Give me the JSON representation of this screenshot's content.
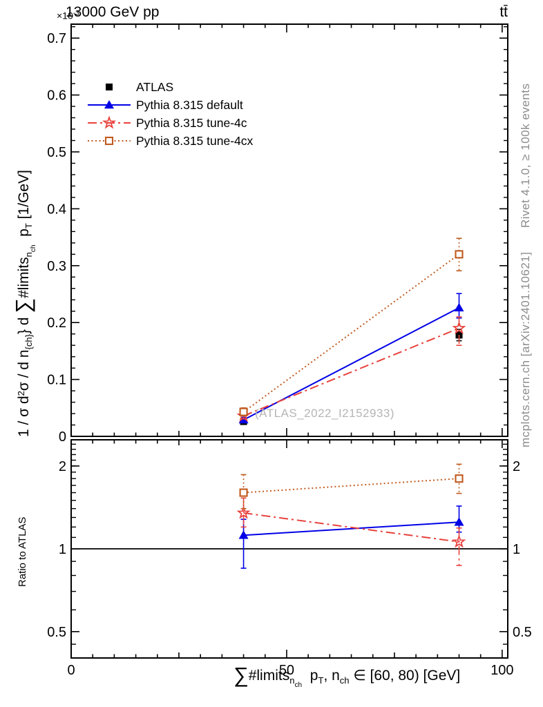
{
  "title": {
    "scale_prefix": "×10",
    "scale_exp": "-3",
    "left": "13000 GeV pp",
    "right": "tt̄"
  },
  "watermark": "(ATLAS_2022_I2152933)",
  "side_notes": {
    "top": "Rivet 4.1.0, ≥ 100k events",
    "bottom": "mcplots.cern.ch [arXiv:2401.10621]"
  },
  "ratio_label": "Ratio to ATLAS",
  "labels": {
    "y_axis_segments": [
      {
        "t": "1 / σ d"
      },
      {
        "t": "2",
        "s": "sup"
      },
      {
        "t": "σ / d n"
      },
      {
        "t": "{ch}",
        "s": "sub"
      },
      {
        "t": "} d "
      },
      {
        "t": "∑",
        "s": "sum"
      },
      {
        "t": "#limits"
      },
      {
        "t": "n",
        "s": "sub"
      },
      {
        "t": "ch",
        "s": "subsub"
      },
      {
        "t": "  p"
      },
      {
        "t": "T",
        "s": "sub"
      },
      {
        "t": " [1/GeV]"
      }
    ],
    "x_axis_segments": [
      {
        "t": "∑",
        "s": "sum"
      },
      {
        "t": "#limits"
      },
      {
        "t": "n",
        "s": "sub"
      },
      {
        "t": "ch",
        "s": "subsub"
      },
      {
        "t": "  p"
      },
      {
        "t": "T",
        "s": "sub"
      },
      {
        "t": ", n"
      },
      {
        "t": "ch",
        "s": "sub"
      },
      {
        "t": " ∈ [60, 80) [GeV]"
      }
    ]
  },
  "chart_data": {
    "type": "line",
    "x": [
      40,
      90
    ],
    "xlim": [
      0,
      101.3
    ],
    "xticks": {
      "values": [
        0,
        50,
        100
      ],
      "labels": [
        "0",
        "50",
        "100"
      ],
      "minor_step": 5
    },
    "series_styles": [
      {
        "name": "ATLAS",
        "label": "ATLAS",
        "color": "#000000",
        "marker": "square-filled",
        "line": "none"
      },
      {
        "name": "Pythia 8.315 default",
        "label": "Pythia 8.315 default",
        "color": "#0000e6",
        "marker": "triangle-filled",
        "line": "solid"
      },
      {
        "name": "Pythia 8.315 tune-4c",
        "label": "Pythia 8.315 tune-4c",
        "color": "#e8413c",
        "marker": "star-open",
        "line": "dashdot"
      },
      {
        "name": "Pythia 8.315 tune-4cx",
        "label": "Pythia 8.315 tune-4cx",
        "color": "#c05a1e",
        "marker": "square-open",
        "line": "dotted"
      }
    ],
    "main_panel": {
      "scale_note": "×10⁻³",
      "ylim": [
        0,
        0.7245
      ],
      "yticks": {
        "values": [
          0,
          0.1,
          0.2,
          0.3,
          0.4,
          0.5,
          0.6,
          0.7
        ],
        "labels": [
          "0",
          "0.1",
          "0.2",
          "0.3",
          "0.4",
          "0.5",
          "0.6",
          "0.7"
        ],
        "minor_step": 0.02
      },
      "series": [
        {
          "name": "ATLAS",
          "values": [
            0.026,
            0.178
          ],
          "err_lo": [
            0.003,
            0.01
          ],
          "err_hi": [
            0.003,
            0.01
          ]
        },
        {
          "name": "Pythia 8.315 default",
          "values": [
            0.029,
            0.226
          ],
          "err_lo": [
            0.004,
            0.018
          ],
          "err_hi": [
            0.004,
            0.025
          ]
        },
        {
          "name": "Pythia 8.315 tune-4c",
          "values": [
            0.036,
            0.19
          ],
          "err_lo": [
            0.005,
            0.03
          ],
          "err_hi": [
            0.005,
            0.02
          ]
        },
        {
          "name": "Pythia 8.315 tune-4cx",
          "values": [
            0.043,
            0.32
          ],
          "err_lo": [
            0.007,
            0.029
          ],
          "err_hi": [
            0.007,
            0.028
          ]
        }
      ]
    },
    "ratio_panel": {
      "yscale": "log",
      "ylim": [
        0.401,
        2.49
      ],
      "yticks": {
        "values": [
          0.5,
          1,
          2
        ],
        "labels": [
          "0.5",
          "1",
          "2"
        ]
      },
      "baseline": 1,
      "series": [
        {
          "name": "Pythia 8.315 default",
          "values": [
            1.12,
            1.25
          ],
          "err_lo": [
            0.27,
            0.1
          ],
          "err_hi": [
            0.16,
            0.18
          ]
        },
        {
          "name": "Pythia 8.315 tune-4c",
          "values": [
            1.35,
            1.06
          ],
          "err_lo": [
            0.15,
            0.19
          ],
          "err_hi": [
            0.18,
            0.13
          ]
        },
        {
          "name": "Pythia 8.315 tune-4cx",
          "values": [
            1.6,
            1.8
          ],
          "err_lo": [
            0.2,
            0.21
          ],
          "err_hi": [
            0.26,
            0.23
          ]
        }
      ]
    }
  }
}
